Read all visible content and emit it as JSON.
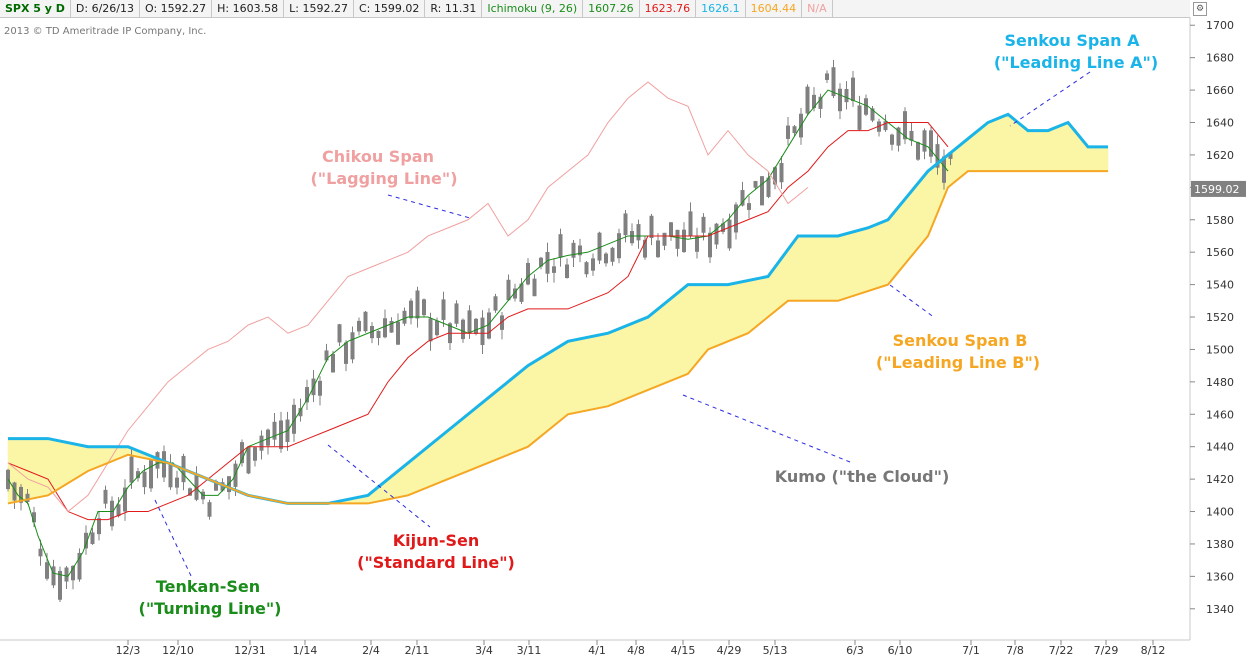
{
  "header": {
    "symbol": "SPX 5 y D",
    "date": "D: 6/26/13",
    "open": "O: 1592.27",
    "high": "H: 1603.58",
    "low": "L: 1592.27",
    "close": "C: 1599.02",
    "range": "R: 11.31",
    "study": "Ichimoku (9, 26)",
    "v1": "1607.26",
    "v2": "1623.76",
    "v3": "1626.1",
    "v4": "1604.44",
    "v5": "N/A"
  },
  "copyright": "2013 © TD Ameritrade IP Company, Inc.",
  "colors": {
    "tenkan": "#1a8c1a",
    "kijun": "#e01a1a",
    "chikou": "#f0a0a0",
    "span_a": "#1ab4e8",
    "span_b": "#f5a623",
    "cloud_bull": "#fbf5a6",
    "cloud_bear": "#f5a0a0",
    "candle": "#808080",
    "price_tag": "#808080"
  },
  "annotations": {
    "chikou_1": "Chikou Span",
    "chikou_2": "(\"Lagging Line\")",
    "span_a_1": "Senkou Span A",
    "span_a_2": "(\"Leading Line A\")",
    "span_b_1": "Senkou Span B",
    "span_b_2": "(\"Leading Line B\")",
    "kumo": "Kumo (\"the Cloud\")",
    "kijun_1": "Kijun-Sen",
    "kijun_2": "(\"Standard Line\")",
    "tenkan_1": "Tenkan-Sen",
    "tenkan_2": "(\"Turning Line\")"
  },
  "price_tag": "1599.02",
  "chart_data": {
    "type": "line",
    "yticks": [
      1340,
      1360,
      1380,
      1400,
      1420,
      1440,
      1460,
      1480,
      1500,
      1520,
      1540,
      1560,
      1580,
      1600,
      1620,
      1640,
      1660,
      1680,
      1700
    ],
    "ylim": [
      1330,
      1702
    ],
    "xticks": [
      "12/3",
      "12/10",
      "12/31",
      "1/14",
      "2/4",
      "2/11",
      "3/4",
      "3/11",
      "4/1",
      "4/8",
      "4/15",
      "4/29",
      "5/13",
      "6/3",
      "6/10",
      "7/1",
      "7/8",
      "7/22",
      "7/29",
      "8/12"
    ],
    "grid": false,
    "series": [
      {
        "name": "Tenkan-Sen",
        "values": [
          [
            0,
            1420
          ],
          [
            10,
            1410
          ],
          [
            20,
            1405
          ],
          [
            30,
            1385
          ],
          [
            45,
            1362
          ],
          [
            60,
            1360
          ],
          [
            75,
            1375
          ],
          [
            90,
            1400
          ],
          [
            105,
            1400
          ],
          [
            120,
            1415
          ],
          [
            135,
            1425
          ],
          [
            150,
            1430
          ],
          [
            165,
            1430
          ],
          [
            180,
            1420
          ],
          [
            195,
            1410
          ],
          [
            210,
            1410
          ],
          [
            225,
            1420
          ],
          [
            240,
            1440
          ],
          [
            260,
            1445
          ],
          [
            280,
            1450
          ],
          [
            300,
            1470
          ],
          [
            320,
            1495
          ],
          [
            340,
            1505
          ],
          [
            360,
            1510
          ],
          [
            380,
            1515
          ],
          [
            400,
            1520
          ],
          [
            420,
            1520
          ],
          [
            440,
            1515
          ],
          [
            460,
            1510
          ],
          [
            480,
            1515
          ],
          [
            500,
            1530
          ],
          [
            520,
            1545
          ],
          [
            540,
            1555
          ],
          [
            560,
            1558
          ],
          [
            580,
            1560
          ],
          [
            600,
            1565
          ],
          [
            620,
            1570
          ],
          [
            640,
            1570
          ],
          [
            660,
            1570
          ],
          [
            680,
            1568
          ],
          [
            700,
            1570
          ],
          [
            720,
            1580
          ],
          [
            740,
            1595
          ],
          [
            760,
            1605
          ],
          [
            780,
            1625
          ],
          [
            800,
            1645
          ],
          [
            820,
            1660
          ],
          [
            840,
            1655
          ],
          [
            860,
            1650
          ],
          [
            880,
            1640
          ],
          [
            900,
            1630
          ],
          [
            920,
            1625
          ],
          [
            940,
            1610
          ]
        ]
      },
      {
        "name": "Kijun-Sen",
        "values": [
          [
            0,
            1430
          ],
          [
            20,
            1425
          ],
          [
            40,
            1420
          ],
          [
            60,
            1400
          ],
          [
            80,
            1395
          ],
          [
            100,
            1395
          ],
          [
            120,
            1400
          ],
          [
            140,
            1400
          ],
          [
            160,
            1405
          ],
          [
            180,
            1410
          ],
          [
            200,
            1420
          ],
          [
            220,
            1430
          ],
          [
            240,
            1440
          ],
          [
            260,
            1440
          ],
          [
            280,
            1440
          ],
          [
            300,
            1445
          ],
          [
            320,
            1450
          ],
          [
            340,
            1455
          ],
          [
            360,
            1460
          ],
          [
            380,
            1480
          ],
          [
            400,
            1495
          ],
          [
            420,
            1505
          ],
          [
            440,
            1510
          ],
          [
            460,
            1510
          ],
          [
            480,
            1510
          ],
          [
            500,
            1520
          ],
          [
            520,
            1525
          ],
          [
            540,
            1525
          ],
          [
            560,
            1525
          ],
          [
            580,
            1530
          ],
          [
            600,
            1535
          ],
          [
            620,
            1545
          ],
          [
            640,
            1570
          ],
          [
            660,
            1570
          ],
          [
            680,
            1570
          ],
          [
            700,
            1570
          ],
          [
            720,
            1575
          ],
          [
            740,
            1580
          ],
          [
            760,
            1585
          ],
          [
            780,
            1600
          ],
          [
            800,
            1610
          ],
          [
            820,
            1625
          ],
          [
            840,
            1635
          ],
          [
            860,
            1635
          ],
          [
            880,
            1640
          ],
          [
            900,
            1640
          ],
          [
            920,
            1640
          ],
          [
            940,
            1625
          ]
        ]
      },
      {
        "name": "Chikou Span",
        "values": [
          [
            0,
            1430
          ],
          [
            20,
            1420
          ],
          [
            40,
            1415
          ],
          [
            60,
            1400
          ],
          [
            80,
            1410
          ],
          [
            100,
            1430
          ],
          [
            120,
            1450
          ],
          [
            140,
            1465
          ],
          [
            160,
            1480
          ],
          [
            180,
            1490
          ],
          [
            200,
            1500
          ],
          [
            220,
            1505
          ],
          [
            240,
            1515
          ],
          [
            260,
            1520
          ],
          [
            280,
            1510
          ],
          [
            300,
            1515
          ],
          [
            320,
            1530
          ],
          [
            340,
            1545
          ],
          [
            360,
            1550
          ],
          [
            380,
            1555
          ],
          [
            400,
            1560
          ],
          [
            420,
            1570
          ],
          [
            440,
            1575
          ],
          [
            460,
            1580
          ],
          [
            480,
            1590
          ],
          [
            500,
            1570
          ],
          [
            520,
            1580
          ],
          [
            540,
            1600
          ],
          [
            560,
            1610
          ],
          [
            580,
            1620
          ],
          [
            600,
            1640
          ],
          [
            620,
            1655
          ],
          [
            640,
            1665
          ],
          [
            660,
            1655
          ],
          [
            680,
            1650
          ],
          [
            700,
            1620
          ],
          [
            720,
            1635
          ],
          [
            740,
            1620
          ],
          [
            760,
            1610
          ],
          [
            780,
            1590
          ],
          [
            800,
            1600
          ]
        ]
      },
      {
        "name": "Senkou Span A",
        "values": [
          [
            0,
            1445
          ],
          [
            40,
            1445
          ],
          [
            80,
            1440
          ],
          [
            120,
            1440
          ],
          [
            160,
            1430
          ],
          [
            200,
            1420
          ],
          [
            240,
            1410
          ],
          [
            280,
            1405
          ],
          [
            320,
            1405
          ],
          [
            360,
            1410
          ],
          [
            400,
            1430
          ],
          [
            440,
            1450
          ],
          [
            480,
            1470
          ],
          [
            520,
            1490
          ],
          [
            560,
            1505
          ],
          [
            600,
            1510
          ],
          [
            640,
            1520
          ],
          [
            680,
            1540
          ],
          [
            720,
            1540
          ],
          [
            760,
            1545
          ],
          [
            790,
            1570
          ],
          [
            830,
            1570
          ],
          [
            860,
            1575
          ],
          [
            880,
            1580
          ],
          [
            900,
            1595
          ],
          [
            920,
            1610
          ],
          [
            940,
            1620
          ],
          [
            960,
            1630
          ],
          [
            980,
            1640
          ],
          [
            1000,
            1645
          ],
          [
            1020,
            1635
          ],
          [
            1040,
            1635
          ],
          [
            1060,
            1640
          ],
          [
            1080,
            1625
          ],
          [
            1100,
            1625
          ]
        ]
      },
      {
        "name": "Senkou Span B",
        "values": [
          [
            0,
            1405
          ],
          [
            40,
            1410
          ],
          [
            80,
            1425
          ],
          [
            120,
            1435
          ],
          [
            160,
            1430
          ],
          [
            200,
            1420
          ],
          [
            240,
            1410
          ],
          [
            280,
            1405
          ],
          [
            320,
            1405
          ],
          [
            360,
            1405
          ],
          [
            400,
            1410
          ],
          [
            440,
            1420
          ],
          [
            480,
            1430
          ],
          [
            520,
            1440
          ],
          [
            560,
            1460
          ],
          [
            600,
            1465
          ],
          [
            640,
            1475
          ],
          [
            680,
            1485
          ],
          [
            700,
            1500
          ],
          [
            740,
            1510
          ],
          [
            780,
            1530
          ],
          [
            830,
            1530
          ],
          [
            880,
            1540
          ],
          [
            900,
            1555
          ],
          [
            920,
            1570
          ],
          [
            940,
            1600
          ],
          [
            960,
            1610
          ],
          [
            1000,
            1610
          ],
          [
            1100,
            1610
          ]
        ]
      }
    ]
  }
}
